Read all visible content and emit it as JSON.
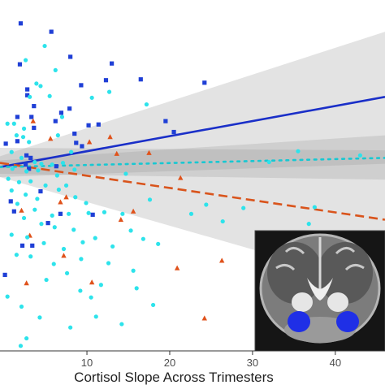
{
  "chart_data": {
    "type": "scatter",
    "title": "",
    "xlabel": "Cortisol Slope Across Trimesters",
    "ylabel": "",
    "xlim": [
      -0.5,
      46
    ],
    "ylim": [
      -2.0,
      2.2
    ],
    "x_ticks": [
      10,
      20,
      30,
      40
    ],
    "x_tick_labels": [
      "10",
      "20",
      "30",
      "40"
    ],
    "grid": false,
    "legend": "none",
    "series": [
      {
        "marker": "square",
        "color": "#1f3fd6",
        "points": [
          [
            2.0,
            1.92
          ],
          [
            5.7,
            1.82
          ],
          [
            1.9,
            1.43
          ],
          [
            8.0,
            1.52
          ],
          [
            0.2,
            0.48
          ],
          [
            2.8,
            1.13
          ],
          [
            2.8,
            1.06
          ],
          [
            3.6,
            0.93
          ],
          [
            1.6,
            0.8
          ],
          [
            3.3,
            0.8
          ],
          [
            3.6,
            0.67
          ],
          [
            1.6,
            0.51
          ],
          [
            2.7,
            0.34
          ],
          [
            3.2,
            0.31
          ],
          [
            6.2,
            0.75
          ],
          [
            6.9,
            0.85
          ],
          [
            7.9,
            0.9
          ],
          [
            8.5,
            0.6
          ],
          [
            8.7,
            0.49
          ],
          [
            3.0,
            0.18
          ],
          [
            12.3,
            1.24
          ],
          [
            9.3,
            1.18
          ],
          [
            10.2,
            0.7
          ],
          [
            11.4,
            0.71
          ],
          [
            13.0,
            1.44
          ],
          [
            16.5,
            1.25
          ],
          [
            19.5,
            0.75
          ],
          [
            20.5,
            0.62
          ],
          [
            24.2,
            1.21
          ],
          [
            9.4,
            0.45
          ],
          [
            6.3,
            0.21
          ],
          [
            1.2,
            -0.33
          ],
          [
            6.8,
            -0.36
          ],
          [
            0.1,
            -1.09
          ],
          [
            2.2,
            -0.74
          ],
          [
            3.4,
            -0.74
          ],
          [
            5.3,
            -0.47
          ],
          [
            0.8,
            -0.21
          ],
          [
            10.7,
            -0.37
          ],
          [
            4.4,
            -0.09
          ],
          [
            2.6,
            0.23
          ]
        ]
      },
      {
        "marker": "triangle",
        "color": "#e0521b",
        "points": [
          [
            3.5,
            0.75
          ],
          [
            5.6,
            0.54
          ],
          [
            10.3,
            0.5
          ],
          [
            12.8,
            0.56
          ],
          [
            13.6,
            0.36
          ],
          [
            17.5,
            0.37
          ],
          [
            21.3,
            0.07
          ],
          [
            15.6,
            -0.33
          ],
          [
            14.1,
            -0.43
          ],
          [
            3.1,
            -0.62
          ],
          [
            6.8,
            -0.22
          ],
          [
            7.5,
            -0.16
          ],
          [
            2.7,
            -1.19
          ],
          [
            10.6,
            -1.18
          ],
          [
            20.9,
            -1.01
          ],
          [
            26.3,
            -0.92
          ],
          [
            24.2,
            -1.61
          ],
          [
            2.1,
            -0.32
          ],
          [
            7.2,
            -0.86
          ]
        ]
      },
      {
        "marker": "circle",
        "color": "#2de3eb",
        "points": [
          [
            4.9,
            1.65
          ],
          [
            2.6,
            1.48
          ],
          [
            6.2,
            1.36
          ],
          [
            4.4,
            1.17
          ],
          [
            3.1,
            1.04
          ],
          [
            10.6,
            1.03
          ],
          [
            0.4,
            0.72
          ],
          [
            1.2,
            0.72
          ],
          [
            2.4,
            0.66
          ],
          [
            1.5,
            0.58
          ],
          [
            2.3,
            0.56
          ],
          [
            3.0,
            0.5
          ],
          [
            0.9,
            0.38
          ],
          [
            2.1,
            0.31
          ],
          [
            3.7,
            0.26
          ],
          [
            4.5,
            0.24
          ],
          [
            5.8,
            0.23
          ],
          [
            7.1,
            0.25
          ],
          [
            1.0,
            0.18
          ],
          [
            2.7,
            0.15
          ],
          [
            4.1,
            0.16
          ],
          [
            6.4,
            0.1
          ],
          [
            8.5,
            0.17
          ],
          [
            0.5,
            0.06
          ],
          [
            1.8,
            0.02
          ],
          [
            3.2,
            0.03
          ],
          [
            5.0,
            -0.02
          ],
          [
            6.6,
            -0.07
          ],
          [
            0.9,
            -0.08
          ],
          [
            2.6,
            -0.13
          ],
          [
            4.0,
            -0.18
          ],
          [
            7.5,
            -0.02
          ],
          [
            8.6,
            -0.16
          ],
          [
            9.9,
            -0.23
          ],
          [
            1.6,
            -0.24
          ],
          [
            3.7,
            -0.31
          ],
          [
            5.8,
            -0.38
          ],
          [
            7.8,
            -0.36
          ],
          [
            10.2,
            -0.35
          ],
          [
            12.1,
            -0.34
          ],
          [
            14.3,
            -0.36
          ],
          [
            15.3,
            -0.56
          ],
          [
            16.8,
            -0.66
          ],
          [
            18.6,
            -0.72
          ],
          [
            2.4,
            -0.41
          ],
          [
            4.5,
            -0.48
          ],
          [
            6.1,
            -0.52
          ],
          [
            8.4,
            -0.55
          ],
          [
            11.0,
            -0.65
          ],
          [
            13.1,
            -0.75
          ],
          [
            0.9,
            -0.61
          ],
          [
            2.8,
            -0.64
          ],
          [
            4.8,
            -0.71
          ],
          [
            7.2,
            -0.78
          ],
          [
            9.3,
            -0.9
          ],
          [
            12.6,
            -0.95
          ],
          [
            15.6,
            -1.04
          ],
          [
            22.6,
            -0.36
          ],
          [
            26.4,
            -0.45
          ],
          [
            36.8,
            -0.48
          ],
          [
            3.2,
            -0.87
          ],
          [
            6.0,
            -0.96
          ],
          [
            7.6,
            -1.07
          ],
          [
            5.1,
            -1.15
          ],
          [
            9.2,
            -1.28
          ],
          [
            11.7,
            -1.21
          ],
          [
            16.0,
            -1.25
          ],
          [
            11.1,
            -1.59
          ],
          [
            14.2,
            -1.68
          ],
          [
            18.0,
            -1.45
          ],
          [
            0.4,
            -1.35
          ],
          [
            2.1,
            -1.47
          ],
          [
            4.3,
            -1.6
          ],
          [
            2.7,
            -1.85
          ],
          [
            8.0,
            -1.72
          ],
          [
            12.7,
            1.1
          ],
          [
            17.2,
            0.95
          ],
          [
            14.7,
            0.12
          ],
          [
            8.1,
            0.38
          ],
          [
            1.5,
            -0.85
          ],
          [
            9.5,
            -0.7
          ],
          [
            10.5,
            -1.36
          ],
          [
            6.5,
            0.58
          ],
          [
            17.6,
            -0.19
          ],
          [
            28.9,
            -0.29
          ],
          [
            37.5,
            -0.28
          ],
          [
            24.4,
            -0.25
          ],
          [
            32.0,
            0.26
          ],
          [
            35.5,
            0.39
          ],
          [
            43.0,
            0.34
          ],
          [
            2.0,
            -1.94
          ],
          [
            5.5,
            1.05
          ],
          [
            3.9,
            1.2
          ],
          [
            7.0,
            0.8
          ]
        ]
      }
    ],
    "fits": [
      {
        "color": "#1a2fc8",
        "style": "solid",
        "x": [
          -0.5,
          46
        ],
        "y": [
          0.2,
          1.04
        ],
        "ci": [
          [
            0.08,
            0.33
          ],
          [
            0.24,
            1.82
          ]
        ]
      },
      {
        "color": "#d9541c",
        "style": "dashed",
        "x": [
          -0.5,
          46
        ],
        "y": [
          0.25,
          -0.43
        ],
        "ci": [
          [
            0.08,
            0.43
          ],
          [
            -1.24,
            0.4
          ]
        ]
      },
      {
        "color": "#17c8d2",
        "style": "dotted",
        "x": [
          -0.5,
          46
        ],
        "y": [
          0.2,
          0.31
        ],
        "ci": [
          [
            0.12,
            0.28
          ],
          [
            0.05,
            0.58
          ]
        ]
      }
    ]
  },
  "inset": {
    "description_icon": "brain-mri-coronal-icon",
    "highlight_color": "#1f2fe6"
  }
}
